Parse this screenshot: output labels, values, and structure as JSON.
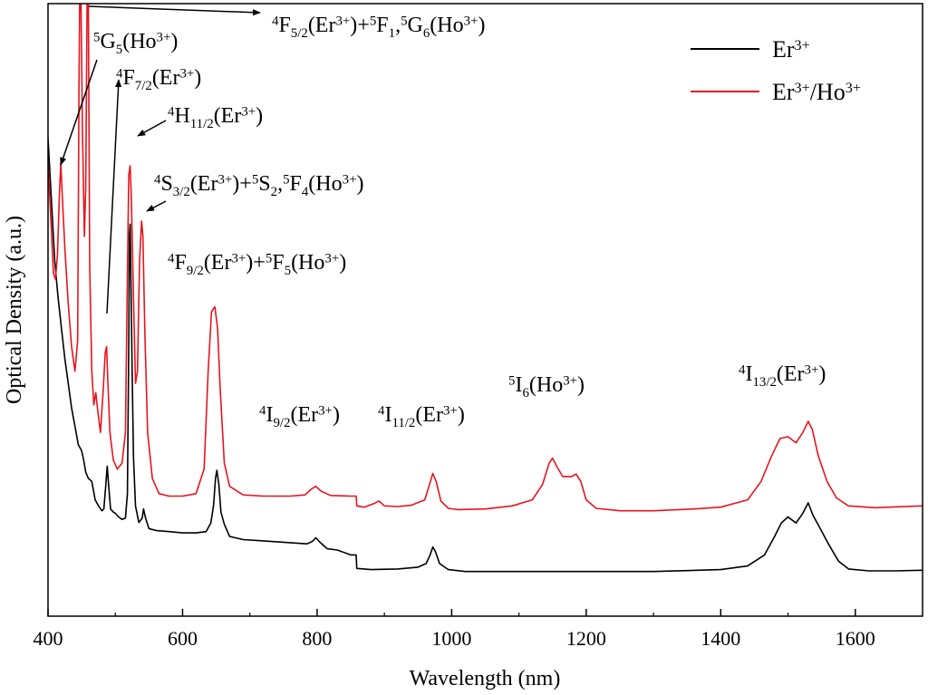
{
  "chart_data": {
    "type": "line",
    "xlabel": "Wavelength (nm)",
    "ylabel": "Optical Density (a.u.)",
    "xlim": [
      400,
      1700
    ],
    "ylim": [
      0,
      1
    ],
    "x_ticks": [
      400,
      600,
      800,
      1000,
      1200,
      1400,
      1600
    ],
    "grid": false,
    "legend_position": "top-right",
    "series": [
      {
        "name": "Er³⁺",
        "color": "#000000",
        "points": [
          [
            400,
            0.78
          ],
          [
            405,
            0.68
          ],
          [
            410,
            0.58
          ],
          [
            415,
            0.52
          ],
          [
            420,
            0.47
          ],
          [
            425,
            0.42
          ],
          [
            430,
            0.38
          ],
          [
            435,
            0.34
          ],
          [
            440,
            0.31
          ],
          [
            445,
            0.28
          ],
          [
            450,
            0.27
          ],
          [
            453,
            0.255
          ],
          [
            456,
            0.235
          ],
          [
            460,
            0.225
          ],
          [
            465,
            0.22
          ],
          [
            470,
            0.19
          ],
          [
            475,
            0.18
          ],
          [
            480,
            0.172
          ],
          [
            483,
            0.175
          ],
          [
            486,
            0.215
          ],
          [
            488,
            0.245
          ],
          [
            490,
            0.215
          ],
          [
            493,
            0.175
          ],
          [
            497,
            0.17
          ],
          [
            500,
            0.168
          ],
          [
            505,
            0.162
          ],
          [
            510,
            0.158
          ],
          [
            515,
            0.16
          ],
          [
            518,
            0.2
          ],
          [
            520,
            0.45
          ],
          [
            521,
            0.62
          ],
          [
            522,
            0.64
          ],
          [
            523,
            0.57
          ],
          [
            525,
            0.4
          ],
          [
            527,
            0.26
          ],
          [
            530,
            0.18
          ],
          [
            535,
            0.153
          ],
          [
            540,
            0.16
          ],
          [
            542,
            0.175
          ],
          [
            545,
            0.16
          ],
          [
            550,
            0.143
          ],
          [
            560,
            0.14
          ],
          [
            580,
            0.138
          ],
          [
            600,
            0.136
          ],
          [
            620,
            0.136
          ],
          [
            635,
            0.138
          ],
          [
            642,
            0.152
          ],
          [
            646,
            0.18
          ],
          [
            649,
            0.225
          ],
          [
            651,
            0.238
          ],
          [
            654,
            0.215
          ],
          [
            657,
            0.17
          ],
          [
            662,
            0.15
          ],
          [
            670,
            0.13
          ],
          [
            690,
            0.125
          ],
          [
            720,
            0.123
          ],
          [
            760,
            0.12
          ],
          [
            785,
            0.118
          ],
          [
            793,
            0.122
          ],
          [
            798,
            0.128
          ],
          [
            805,
            0.12
          ],
          [
            815,
            0.11
          ],
          [
            830,
            0.108
          ],
          [
            850,
            0.1
          ],
          [
            858,
            0.1
          ],
          [
            859,
            0.078
          ],
          [
            880,
            0.076
          ],
          [
            920,
            0.077
          ],
          [
            950,
            0.08
          ],
          [
            962,
            0.086
          ],
          [
            968,
            0.1
          ],
          [
            972,
            0.113
          ],
          [
            976,
            0.105
          ],
          [
            982,
            0.086
          ],
          [
            995,
            0.076
          ],
          [
            1020,
            0.073
          ],
          [
            1100,
            0.073
          ],
          [
            1200,
            0.073
          ],
          [
            1300,
            0.073
          ],
          [
            1400,
            0.076
          ],
          [
            1440,
            0.082
          ],
          [
            1465,
            0.1
          ],
          [
            1480,
            0.13
          ],
          [
            1490,
            0.152
          ],
          [
            1500,
            0.162
          ],
          [
            1512,
            0.152
          ],
          [
            1522,
            0.168
          ],
          [
            1530,
            0.185
          ],
          [
            1537,
            0.165
          ],
          [
            1547,
            0.145
          ],
          [
            1560,
            0.118
          ],
          [
            1575,
            0.09
          ],
          [
            1590,
            0.077
          ],
          [
            1620,
            0.074
          ],
          [
            1660,
            0.074
          ],
          [
            1700,
            0.075
          ]
        ]
      },
      {
        "name": "Er³⁺/Ho³⁺",
        "color": "#e8141e",
        "points": [
          [
            400,
            0.74
          ],
          [
            405,
            0.63
          ],
          [
            408,
            0.56
          ],
          [
            411,
            0.55
          ],
          [
            414,
            0.59
          ],
          [
            417,
            0.69
          ],
          [
            419,
            0.74
          ],
          [
            421,
            0.69
          ],
          [
            425,
            0.6
          ],
          [
            430,
            0.51
          ],
          [
            435,
            0.44
          ],
          [
            440,
            0.4
          ],
          [
            444,
            0.45
          ],
          [
            446,
            0.85
          ],
          [
            447,
            1.0
          ],
          [
            449,
            1.0
          ],
          [
            451,
            0.8
          ],
          [
            454,
            0.62
          ],
          [
            456,
            0.7
          ],
          [
            458,
            1.0
          ],
          [
            460,
            1.0
          ],
          [
            462,
            0.57
          ],
          [
            465,
            0.4
          ],
          [
            468,
            0.345
          ],
          [
            471,
            0.365
          ],
          [
            474,
            0.335
          ],
          [
            478,
            0.3
          ],
          [
            482,
            0.37
          ],
          [
            485,
            0.43
          ],
          [
            487,
            0.44
          ],
          [
            489,
            0.38
          ],
          [
            492,
            0.3
          ],
          [
            497,
            0.255
          ],
          [
            503,
            0.24
          ],
          [
            510,
            0.25
          ],
          [
            515,
            0.3
          ],
          [
            518,
            0.56
          ],
          [
            520,
            0.72
          ],
          [
            522,
            0.735
          ],
          [
            524,
            0.68
          ],
          [
            527,
            0.52
          ],
          [
            530,
            0.38
          ],
          [
            533,
            0.4
          ],
          [
            536,
            0.58
          ],
          [
            539,
            0.645
          ],
          [
            541,
            0.62
          ],
          [
            544,
            0.46
          ],
          [
            548,
            0.3
          ],
          [
            555,
            0.225
          ],
          [
            565,
            0.2
          ],
          [
            580,
            0.196
          ],
          [
            600,
            0.196
          ],
          [
            620,
            0.2
          ],
          [
            632,
            0.24
          ],
          [
            638,
            0.4
          ],
          [
            643,
            0.497
          ],
          [
            648,
            0.505
          ],
          [
            652,
            0.47
          ],
          [
            656,
            0.37
          ],
          [
            662,
            0.25
          ],
          [
            670,
            0.212
          ],
          [
            690,
            0.198
          ],
          [
            720,
            0.196
          ],
          [
            760,
            0.196
          ],
          [
            782,
            0.198
          ],
          [
            792,
            0.208
          ],
          [
            798,
            0.212
          ],
          [
            806,
            0.204
          ],
          [
            820,
            0.197
          ],
          [
            850,
            0.196
          ],
          [
            858,
            0.196
          ],
          [
            859,
            0.18
          ],
          [
            870,
            0.178
          ],
          [
            885,
            0.184
          ],
          [
            892,
            0.188
          ],
          [
            900,
            0.18
          ],
          [
            920,
            0.179
          ],
          [
            940,
            0.181
          ],
          [
            960,
            0.19
          ],
          [
            967,
            0.215
          ],
          [
            972,
            0.233
          ],
          [
            977,
            0.22
          ],
          [
            984,
            0.188
          ],
          [
            995,
            0.176
          ],
          [
            1010,
            0.174
          ],
          [
            1050,
            0.175
          ],
          [
            1090,
            0.18
          ],
          [
            1120,
            0.19
          ],
          [
            1135,
            0.215
          ],
          [
            1145,
            0.25
          ],
          [
            1150,
            0.258
          ],
          [
            1156,
            0.245
          ],
          [
            1165,
            0.228
          ],
          [
            1178,
            0.228
          ],
          [
            1185,
            0.232
          ],
          [
            1192,
            0.22
          ],
          [
            1200,
            0.19
          ],
          [
            1215,
            0.176
          ],
          [
            1250,
            0.172
          ],
          [
            1300,
            0.172
          ],
          [
            1360,
            0.175
          ],
          [
            1400,
            0.178
          ],
          [
            1440,
            0.19
          ],
          [
            1460,
            0.22
          ],
          [
            1475,
            0.26
          ],
          [
            1488,
            0.29
          ],
          [
            1500,
            0.293
          ],
          [
            1512,
            0.283
          ],
          [
            1522,
            0.3
          ],
          [
            1530,
            0.318
          ],
          [
            1536,
            0.305
          ],
          [
            1545,
            0.262
          ],
          [
            1558,
            0.22
          ],
          [
            1572,
            0.193
          ],
          [
            1590,
            0.18
          ],
          [
            1630,
            0.177
          ],
          [
            1700,
            0.18
          ]
        ]
      }
    ],
    "annotations": [
      {
        "id": "g5",
        "parts": [
          [
            "5",
            "sup"
          ],
          [
            "G",
            ""
          ],
          [
            "5",
            "sub"
          ],
          [
            "(Ho",
            ""
          ],
          [
            "3+",
            "sup"
          ],
          [
            ")",
            ""
          ]
        ]
      },
      {
        "id": "f52",
        "parts": [
          [
            "4",
            "sup"
          ],
          [
            "F",
            ""
          ],
          [
            "5/2",
            "sub"
          ],
          [
            "(Er",
            ""
          ],
          [
            "3+",
            "sup"
          ],
          [
            ")+",
            ""
          ],
          [
            "5",
            "sup"
          ],
          [
            "F",
            ""
          ],
          [
            "1",
            "sub"
          ],
          [
            ",",
            ""
          ],
          [
            "5",
            "sup"
          ],
          [
            "G",
            ""
          ],
          [
            "6",
            "sub"
          ],
          [
            "(Ho",
            ""
          ],
          [
            "3+",
            "sup"
          ],
          [
            ")",
            ""
          ]
        ]
      },
      {
        "id": "f72",
        "parts": [
          [
            "4",
            "sup"
          ],
          [
            "F",
            ""
          ],
          [
            "7/2",
            "sub"
          ],
          [
            "(Er",
            ""
          ],
          [
            "3+",
            "sup"
          ],
          [
            ")",
            ""
          ]
        ]
      },
      {
        "id": "h112",
        "parts": [
          [
            "4",
            "sup"
          ],
          [
            "H",
            ""
          ],
          [
            "11/2",
            "sub"
          ],
          [
            "(Er",
            ""
          ],
          [
            "3+",
            "sup"
          ],
          [
            ")",
            ""
          ]
        ]
      },
      {
        "id": "s32",
        "parts": [
          [
            "4",
            "sup"
          ],
          [
            "S",
            ""
          ],
          [
            "3/2",
            "sub"
          ],
          [
            "(Er",
            ""
          ],
          [
            "3+",
            "sup"
          ],
          [
            ")+",
            ""
          ],
          [
            "5",
            "sup"
          ],
          [
            "S",
            ""
          ],
          [
            "2",
            "sub"
          ],
          [
            ",",
            ""
          ],
          [
            "5",
            "sup"
          ],
          [
            "F",
            ""
          ],
          [
            "4",
            "sub"
          ],
          [
            "(Ho",
            ""
          ],
          [
            "3+",
            "sup"
          ],
          [
            ")",
            ""
          ]
        ]
      },
      {
        "id": "f92",
        "parts": [
          [
            "4",
            "sup"
          ],
          [
            "F",
            ""
          ],
          [
            "9/2",
            "sub"
          ],
          [
            "(Er",
            ""
          ],
          [
            "3+",
            "sup"
          ],
          [
            ")+",
            ""
          ],
          [
            "5",
            "sup"
          ],
          [
            "F",
            ""
          ],
          [
            "5",
            "sub"
          ],
          [
            "(Ho",
            ""
          ],
          [
            "3+",
            "sup"
          ],
          [
            ")",
            ""
          ]
        ]
      },
      {
        "id": "i92",
        "parts": [
          [
            "4",
            "sup"
          ],
          [
            "I",
            ""
          ],
          [
            "9/2",
            "sub"
          ],
          [
            "(Er",
            ""
          ],
          [
            "3+",
            "sup"
          ],
          [
            ")",
            ""
          ]
        ]
      },
      {
        "id": "i112",
        "parts": [
          [
            "4",
            "sup"
          ],
          [
            "I",
            ""
          ],
          [
            "11/2",
            "sub"
          ],
          [
            "(Er",
            ""
          ],
          [
            "3+",
            "sup"
          ],
          [
            ")",
            ""
          ]
        ]
      },
      {
        "id": "i6",
        "parts": [
          [
            "5",
            "sup"
          ],
          [
            "I",
            ""
          ],
          [
            "6",
            "sub"
          ],
          [
            "(Ho",
            ""
          ],
          [
            "3+",
            "sup"
          ],
          [
            ")",
            ""
          ]
        ]
      },
      {
        "id": "i132",
        "parts": [
          [
            "4",
            "sup"
          ],
          [
            "I",
            ""
          ],
          [
            "13/2",
            "sub"
          ],
          [
            "(Er",
            ""
          ],
          [
            "3+",
            "sup"
          ],
          [
            ")",
            ""
          ]
        ]
      }
    ]
  }
}
